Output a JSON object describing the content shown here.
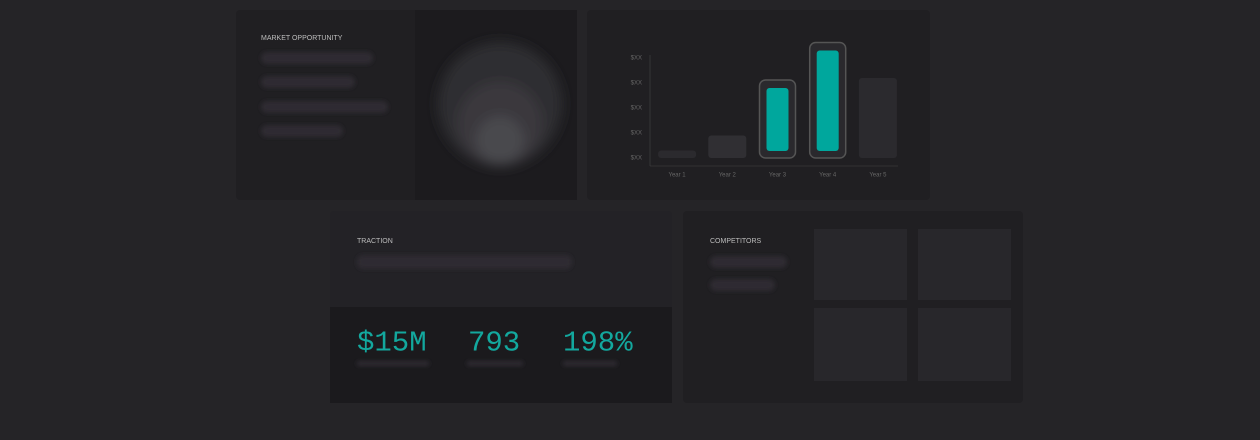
{
  "slides": {
    "market": {
      "title": "MARKET OPPORTUNITY"
    },
    "traction": {
      "title": "TRACTION",
      "stats": [
        "$15M",
        "793",
        "198%"
      ]
    },
    "competitors": {
      "title": "COMPETITORS"
    }
  },
  "chart_data": {
    "type": "bar",
    "categories": [
      "Year 1",
      "Year 2",
      "Year 3",
      "Year 4",
      "Year 5"
    ],
    "values": [
      0.3,
      0.9,
      2.8,
      4.3,
      3.2
    ],
    "colors": [
      "#2b2a2e",
      "#302f33",
      "#00a79d",
      "#00a79d",
      "#2b2a2e"
    ],
    "ylim": [
      0,
      4.4
    ],
    "yticks": [
      {
        "value": 0,
        "label": "$XX"
      },
      {
        "value": 1,
        "label": "$XX"
      },
      {
        "value": 2,
        "label": "$XX"
      },
      {
        "value": 3,
        "label": "$XX"
      },
      {
        "value": 4,
        "label": "$XX"
      }
    ]
  }
}
